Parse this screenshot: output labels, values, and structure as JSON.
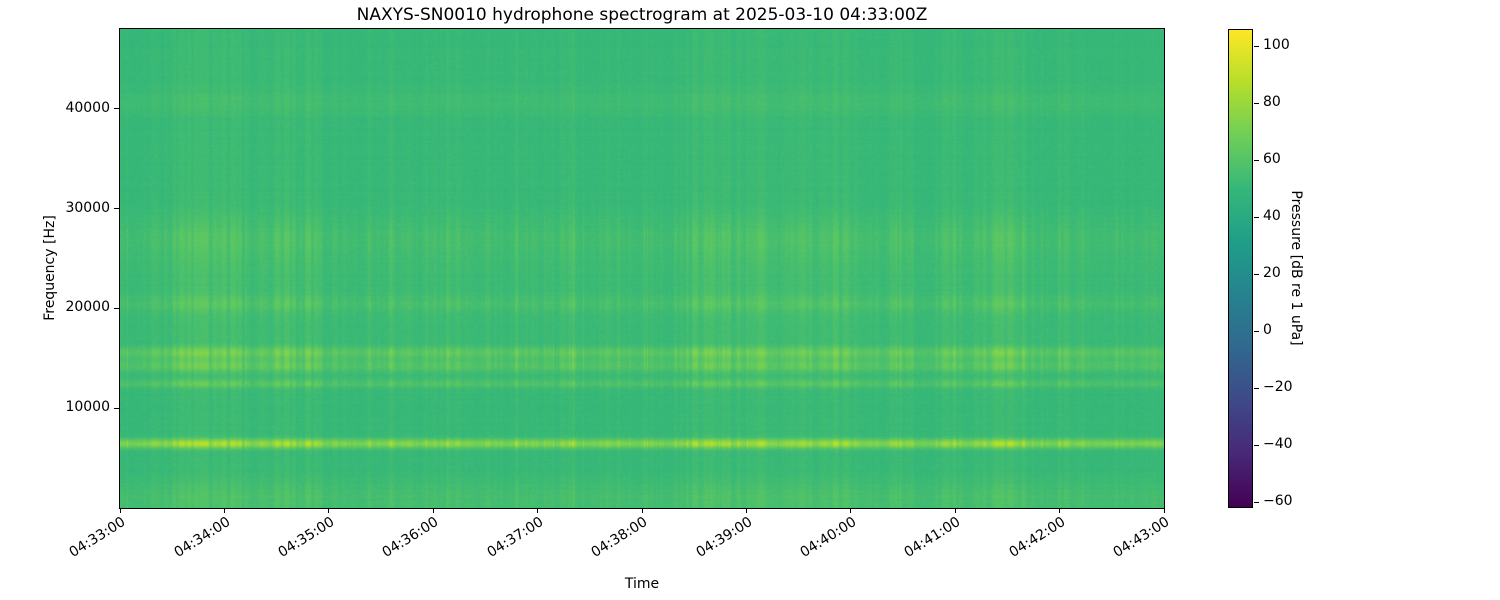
{
  "chart_data": {
    "type": "heatmap",
    "title": "NAXYS-SN0010 hydrophone spectrogram at 2025-03-10 04:33:00Z",
    "xlabel": "Time",
    "ylabel": "Frequency [Hz]",
    "x_tick_labels": [
      "04:33:00",
      "04:34:00",
      "04:35:00",
      "04:36:00",
      "04:37:00",
      "04:38:00",
      "04:39:00",
      "04:40:00",
      "04:41:00",
      "04:42:00",
      "04:43:00"
    ],
    "y_ticks": [
      {
        "value": 10000,
        "label": "10000"
      },
      {
        "value": 20000,
        "label": "20000"
      },
      {
        "value": 30000,
        "label": "30000"
      },
      {
        "value": 40000,
        "label": "40000"
      }
    ],
    "freq_range_hz": [
      0,
      48000
    ],
    "time_span_minutes": 10,
    "background_level_db": 50,
    "vertical_striping": true,
    "bands": [
      {
        "center_hz": 6500,
        "width_hz": 320,
        "amp_db": 34,
        "steady_fraction": 0.5
      },
      {
        "center_hz": 12500,
        "width_hz": 300,
        "amp_db": 13,
        "steady_fraction": 0.35
      },
      {
        "center_hz": 14300,
        "width_hz": 450,
        "amp_db": 15,
        "steady_fraction": 0.35
      },
      {
        "center_hz": 15600,
        "width_hz": 450,
        "amp_db": 17,
        "steady_fraction": 0.35
      },
      {
        "center_hz": 20500,
        "width_hz": 600,
        "amp_db": 7,
        "steady_fraction": 0.25
      },
      {
        "center_hz": 22000,
        "width_hz": 5000,
        "amp_db": 4,
        "steady_fraction": 0.2
      },
      {
        "center_hz": 27000,
        "width_hz": 1500,
        "amp_db": 6,
        "steady_fraction": 0.2
      },
      {
        "center_hz": 1000,
        "width_hz": 1300,
        "amp_db": 7,
        "steady_fraction": 0.5
      },
      {
        "center_hz": 40800,
        "width_hz": 900,
        "amp_db": 3.5,
        "steady_fraction": 0.7
      }
    ],
    "colorbar": {
      "label": "Pressure [dB re 1 uPa]",
      "vmin": -62,
      "vmax": 106,
      "colormap": "viridis",
      "colormap_stops": [
        "#440154",
        "#482878",
        "#3e4989",
        "#31688e",
        "#26828e",
        "#1f9e89",
        "#35b779",
        "#6ece58",
        "#b5de2b",
        "#fde725"
      ],
      "ticks": [
        {
          "value": 100,
          "label": "100"
        },
        {
          "value": 80,
          "label": "80"
        },
        {
          "value": 60,
          "label": "60"
        },
        {
          "value": 40,
          "label": "40"
        },
        {
          "value": 20,
          "label": "20"
        },
        {
          "value": 0,
          "label": "0"
        },
        {
          "value": -20,
          "label": "−20"
        },
        {
          "value": -40,
          "label": "−40"
        },
        {
          "value": -60,
          "label": "−60"
        }
      ]
    }
  }
}
